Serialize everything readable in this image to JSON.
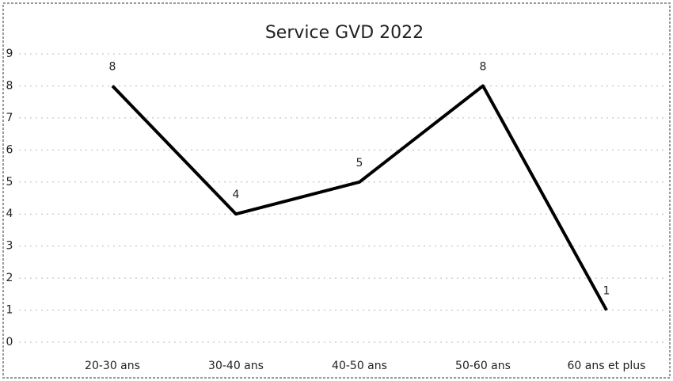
{
  "chart_data": {
    "type": "line",
    "title": "Service GVD 2022",
    "categories": [
      "20-30 ans",
      "30-40 ans",
      "40-50 ans",
      "50-60 ans",
      "60 ans et plus"
    ],
    "values": [
      8,
      4,
      5,
      8,
      1
    ],
    "color": "#000000",
    "ylim": [
      0,
      9
    ],
    "yticks": [
      0,
      1,
      2,
      3,
      4,
      5,
      6,
      7,
      8,
      9
    ],
    "grid": true,
    "data_labels": true
  }
}
